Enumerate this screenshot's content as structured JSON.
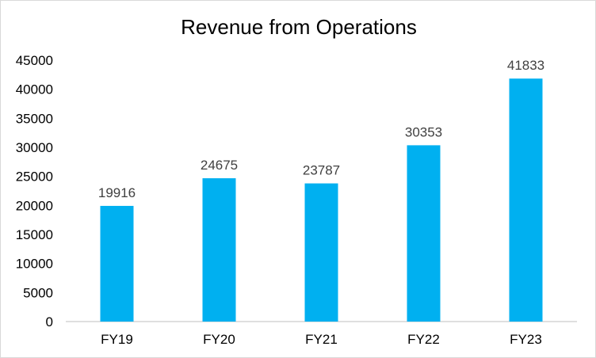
{
  "chart_data": {
    "type": "bar",
    "title": "Revenue from Operations",
    "xlabel": "",
    "ylabel": "",
    "categories": [
      "FY19",
      "FY20",
      "FY21",
      "FY22",
      "FY23"
    ],
    "values": [
      19916,
      24675,
      23787,
      30353,
      41833
    ],
    "value_labels": [
      "19916",
      "24675",
      "23787",
      "30353",
      "41833"
    ],
    "ylim": [
      0,
      45000
    ],
    "yticks": [
      0,
      5000,
      10000,
      15000,
      20000,
      25000,
      30000,
      35000,
      40000,
      45000
    ],
    "ytick_labels": [
      "0",
      "5000",
      "10000",
      "15000",
      "20000",
      "25000",
      "30000",
      "35000",
      "40000",
      "45000"
    ],
    "grid": false,
    "legend": "none",
    "colors": {
      "bar": "#00b0f0",
      "axis": "#bfbfbf",
      "label": "#404040",
      "text": "#000000"
    }
  }
}
